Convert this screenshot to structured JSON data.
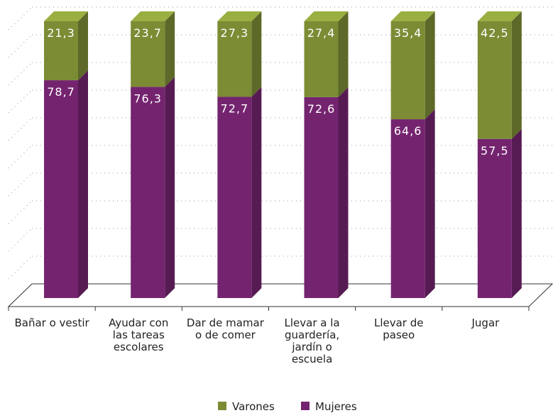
{
  "chart_data": {
    "type": "bar3d_stacked",
    "categories": [
      "Bañar o vestir",
      "Ayudar con\nlas tareas\nescolares",
      "Dar de mamar\no de comer",
      "Llevar a la\nguardería,\njardín o\nescuela",
      "Llevar de\npaseo",
      "Jugar"
    ],
    "series": [
      {
        "name": "Mujeres",
        "color": "#74246f",
        "values": [
          78.7,
          76.3,
          72.7,
          72.6,
          64.6,
          57.5
        ],
        "value_labels": [
          "78,7",
          "76,3",
          "72,7",
          "72,6",
          "64,6",
          "57,5"
        ]
      },
      {
        "name": "Varones",
        "color": "#7b8c35",
        "values": [
          21.3,
          23.7,
          27.3,
          27.4,
          35.4,
          42.5
        ],
        "value_labels": [
          "21,3",
          "23,7",
          "27,3",
          "27,4",
          "35,4",
          "42,5"
        ]
      }
    ],
    "ylim": [
      0,
      100
    ],
    "yticks": [
      0,
      10,
      20,
      30,
      40,
      50,
      60,
      70,
      80,
      90,
      100
    ],
    "grid": true,
    "legend": "bottom"
  }
}
